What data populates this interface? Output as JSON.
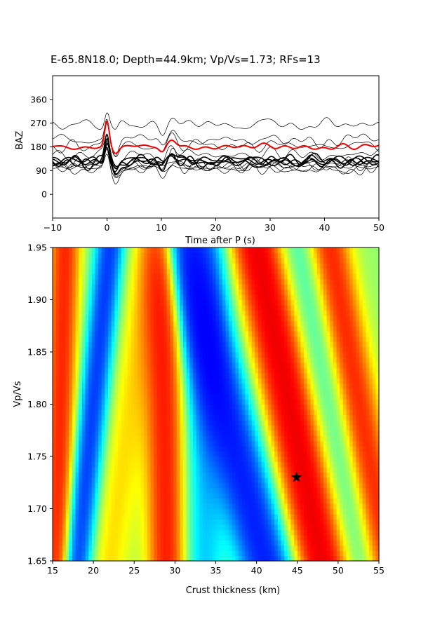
{
  "title": "E-65.8N18.0; Depth=44.9km; Vp/Vs=1.73; RFs=13",
  "chart_data": [
    {
      "type": "line",
      "name": "receiver-function-traces",
      "xlabel": "Time after P (s)",
      "ylabel": "BAZ",
      "xlim": [
        -10,
        50
      ],
      "ylim": [
        -90,
        450
      ],
      "x_ticks": [
        "−10",
        "0",
        "10",
        "20",
        "30",
        "40",
        "50"
      ],
      "x_tick_values": [
        -10,
        0,
        10,
        20,
        30,
        40,
        50
      ],
      "y_ticks": [
        "0",
        "90",
        "180",
        "270",
        "360"
      ],
      "y_tick_values": [
        0,
        90,
        180,
        270,
        360
      ],
      "grid": false,
      "traces": {
        "count": 13,
        "baz": [
          95,
          100,
          105,
          110,
          115,
          120,
          125,
          128,
          130,
          150,
          185,
          205,
          265
        ],
        "bold_baz": [
          125,
          135
        ],
        "stack_baz": 180,
        "peak_time_s": 0,
        "ps_time_s": 12,
        "color": "#000000",
        "stack_color": "#ee0000"
      }
    },
    {
      "type": "heatmap",
      "name": "h-kappa-stack",
      "xlabel": "Crust thickness (km)",
      "ylabel": "Vp/Vs",
      "xlim": [
        15,
        55
      ],
      "ylim": [
        1.65,
        1.95
      ],
      "x_ticks": [
        "15",
        "20",
        "25",
        "30",
        "35",
        "40",
        "45",
        "50",
        "55"
      ],
      "x_tick_values": [
        15,
        20,
        25,
        30,
        35,
        40,
        45,
        50,
        55
      ],
      "y_ticks": [
        "1.65",
        "1.70",
        "1.75",
        "1.80",
        "1.85",
        "1.90",
        "1.95"
      ],
      "y_tick_values": [
        1.65,
        1.7,
        1.75,
        1.8,
        1.85,
        1.9,
        1.95
      ],
      "colormap": "jet",
      "ridges": [
        {
          "h_at_top": 16.5,
          "h_at_bottom": 15.5,
          "amp": 0.9,
          "width": 1.3
        },
        {
          "h_at_top": 22.0,
          "h_at_bottom": 18.0,
          "amp": -1.0,
          "width": 1.2
        },
        {
          "h_at_top": 27.0,
          "h_at_bottom": 22.0,
          "amp": 0.3,
          "width": 1.8
        },
        {
          "h_at_top": 28.5,
          "h_at_bottom": 29.0,
          "amp": 0.95,
          "width": 1.6
        },
        {
          "h_at_top": 34.0,
          "h_at_bottom": 33.5,
          "amp": -0.45,
          "width": 1.8
        },
        {
          "h_at_top": 31.0,
          "h_at_bottom": 41.0,
          "amp": -1.2,
          "width": 2.2
        },
        {
          "h_at_top": 40.0,
          "h_at_bottom": 48.0,
          "amp": 1.25,
          "width": 2.1
        },
        {
          "h_at_top": 45.0,
          "h_at_bottom": 53.0,
          "amp": -0.25,
          "width": 1.8
        },
        {
          "h_at_top": 49.0,
          "h_at_bottom": 56.0,
          "amp": 0.9,
          "width": 1.7
        }
      ],
      "best": {
        "thickness_km": 44.9,
        "vpvs": 1.73,
        "marker": "star"
      }
    }
  ]
}
